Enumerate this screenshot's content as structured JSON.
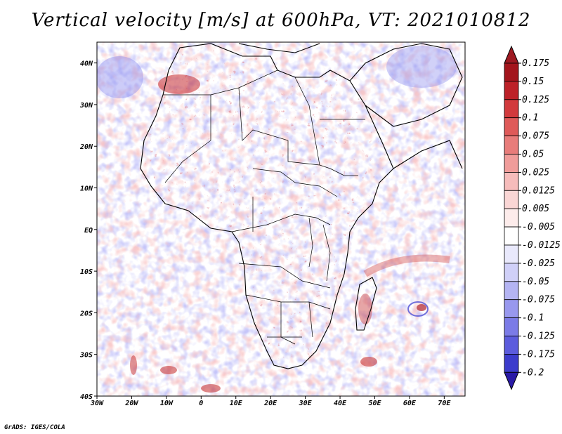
{
  "title": "Vertical velocity [m/s] at 600hPa, VT: 2021010812",
  "credit": "GrADS: IGES/COLA",
  "map": {
    "lon_range": [
      -30,
      76
    ],
    "lat_range": [
      -40,
      45
    ],
    "lon_ticks": [
      {
        "value": -30,
        "label": "30W"
      },
      {
        "value": -20,
        "label": "20W"
      },
      {
        "value": -10,
        "label": "10W"
      },
      {
        "value": 0,
        "label": "0"
      },
      {
        "value": 10,
        "label": "10E"
      },
      {
        "value": 20,
        "label": "20E"
      },
      {
        "value": 30,
        "label": "30E"
      },
      {
        "value": 40,
        "label": "40E"
      },
      {
        "value": 50,
        "label": "50E"
      },
      {
        "value": 60,
        "label": "60E"
      },
      {
        "value": 70,
        "label": "70E"
      }
    ],
    "lat_ticks": [
      {
        "value": 40,
        "label": "40N"
      },
      {
        "value": 30,
        "label": "30N"
      },
      {
        "value": 20,
        "label": "20N"
      },
      {
        "value": 10,
        "label": "10N"
      },
      {
        "value": 0,
        "label": "EQ"
      },
      {
        "value": -10,
        "label": "10S"
      },
      {
        "value": -20,
        "label": "20S"
      },
      {
        "value": -30,
        "label": "30S"
      },
      {
        "value": -40,
        "label": "40S"
      }
    ]
  },
  "colorbar": {
    "levels": [
      {
        "label": "0.175",
        "color": "#a3151c"
      },
      {
        "label": "0.15",
        "color": "#bd2128"
      },
      {
        "label": "0.125",
        "color": "#d23a3d"
      },
      {
        "label": "0.1",
        "color": "#df5a59"
      },
      {
        "label": "0.075",
        "color": "#e87c7a"
      },
      {
        "label": "0.05",
        "color": "#f09c9a"
      },
      {
        "label": "0.025",
        "color": "#f6bcbb"
      },
      {
        "label": "0.0125",
        "color": "#fad6d5"
      },
      {
        "label": "0.005",
        "color": "#fdeceb"
      },
      {
        "label": "-0.005",
        "color": "#ffffff"
      },
      {
        "label": "-0.0125",
        "color": "#e9e9fc"
      },
      {
        "label": "-0.025",
        "color": "#d0d0f8"
      },
      {
        "label": "-0.05",
        "color": "#b4b4f3"
      },
      {
        "label": "-0.075",
        "color": "#9898ee"
      },
      {
        "label": "-0.1",
        "color": "#7b7be7"
      },
      {
        "label": "-0.125",
        "color": "#5c5cdd"
      },
      {
        "label": "-0.175",
        "color": "#3c3ccc"
      },
      {
        "label": "-0.2",
        "color": "#1c1ca8"
      }
    ],
    "top_color": "#9e1a22",
    "bottom_color": "#2a1aa6"
  }
}
